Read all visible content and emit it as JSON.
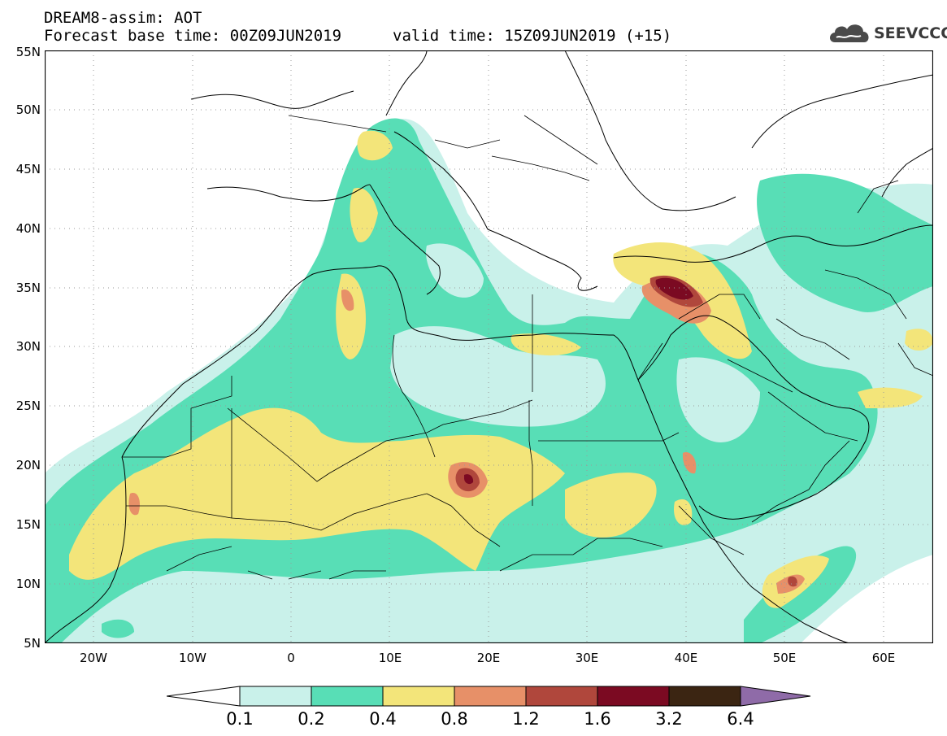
{
  "header": {
    "title": "DREAM8-assim: AOT",
    "base_time": "Forecast base time: 00Z09JUN2019",
    "valid_time": "valid time: 15Z09JUN2019 (+15)"
  },
  "logo": {
    "text": "SEEVCCC",
    "icon": "cloud-icon"
  },
  "map": {
    "latitude_labels": [
      "55N",
      "50N",
      "45N",
      "40N",
      "35N",
      "30N",
      "25N",
      "20N",
      "15N",
      "10N",
      "5N"
    ],
    "longitude_labels": [
      "20W",
      "10W",
      "0",
      "10E",
      "20E",
      "30E",
      "40E",
      "50E",
      "60E"
    ]
  },
  "legend": {
    "labels": [
      "0.1",
      "0.2",
      "0.4",
      "0.8",
      "1.2",
      "1.6",
      "3.2",
      "6.4"
    ],
    "colors": [
      "#ffffff",
      "#c9f1ea",
      "#58deb6",
      "#f3e57a",
      "#e79068",
      "#b0473c",
      "#7b0a22",
      "#3b2512",
      "#8f6ba8"
    ]
  },
  "colors": {
    "aot_0_1": "#c9f1ea",
    "aot_0_2": "#58deb6",
    "aot_0_4": "#f3e57a",
    "aot_0_8": "#e79068",
    "aot_1_2": "#b0473c",
    "aot_1_6": "#7b0a22",
    "aot_3_2": "#3b2512",
    "aot_6_4": "#8f6ba8"
  }
}
